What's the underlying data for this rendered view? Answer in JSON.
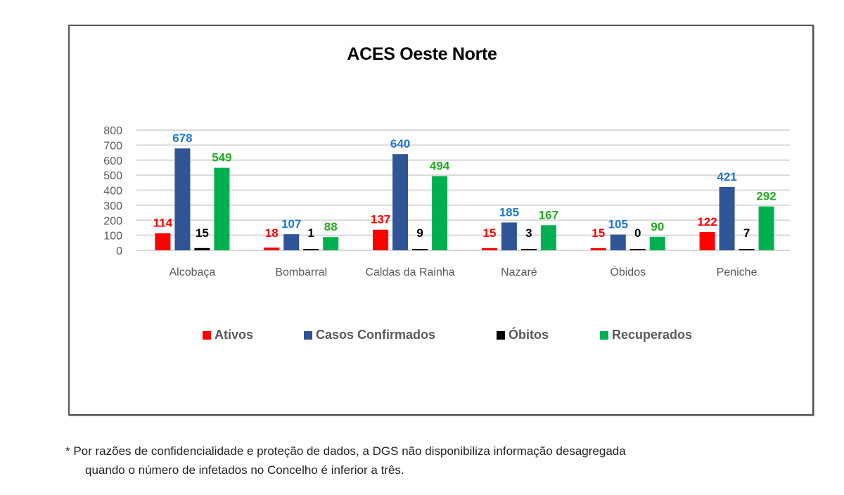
{
  "chart_data": {
    "type": "bar",
    "title": "ACES Oeste Norte",
    "xlabel": "",
    "ylabel": "",
    "ylim": [
      0,
      800
    ],
    "yticks": [
      0,
      100,
      200,
      300,
      400,
      500,
      600,
      700,
      800
    ],
    "grid": true,
    "legend_position": "bottom",
    "categories": [
      "Alcobaça",
      "Bombarral",
      "Caldas da Rainha",
      "Nazaré",
      "Óbidos",
      "Peniche"
    ],
    "series": [
      {
        "name": "Ativos",
        "color": "#ff0000",
        "label_color": "#ff0000",
        "values": [
          114,
          18,
          137,
          15,
          15,
          122
        ]
      },
      {
        "name": "Casos Confirmados",
        "color": "#2f5597",
        "label_color": "#1f78d1",
        "values": [
          678,
          107,
          640,
          185,
          105,
          421
        ]
      },
      {
        "name": "Óbitos",
        "color": "#000000",
        "label_color": "#000000",
        "values": [
          15,
          1,
          9,
          3,
          0,
          7
        ]
      },
      {
        "name": "Recuperados",
        "color": "#00b050",
        "label_color": "#22aa22",
        "values": [
          549,
          88,
          494,
          167,
          90,
          292
        ]
      }
    ]
  },
  "footnote": {
    "line1": "* Por razões de confidencialidade e proteção de dados, a DGS não disponibiliza informação desagregada",
    "line2": "quando o número de infetados no Concelho é inferior a três."
  }
}
